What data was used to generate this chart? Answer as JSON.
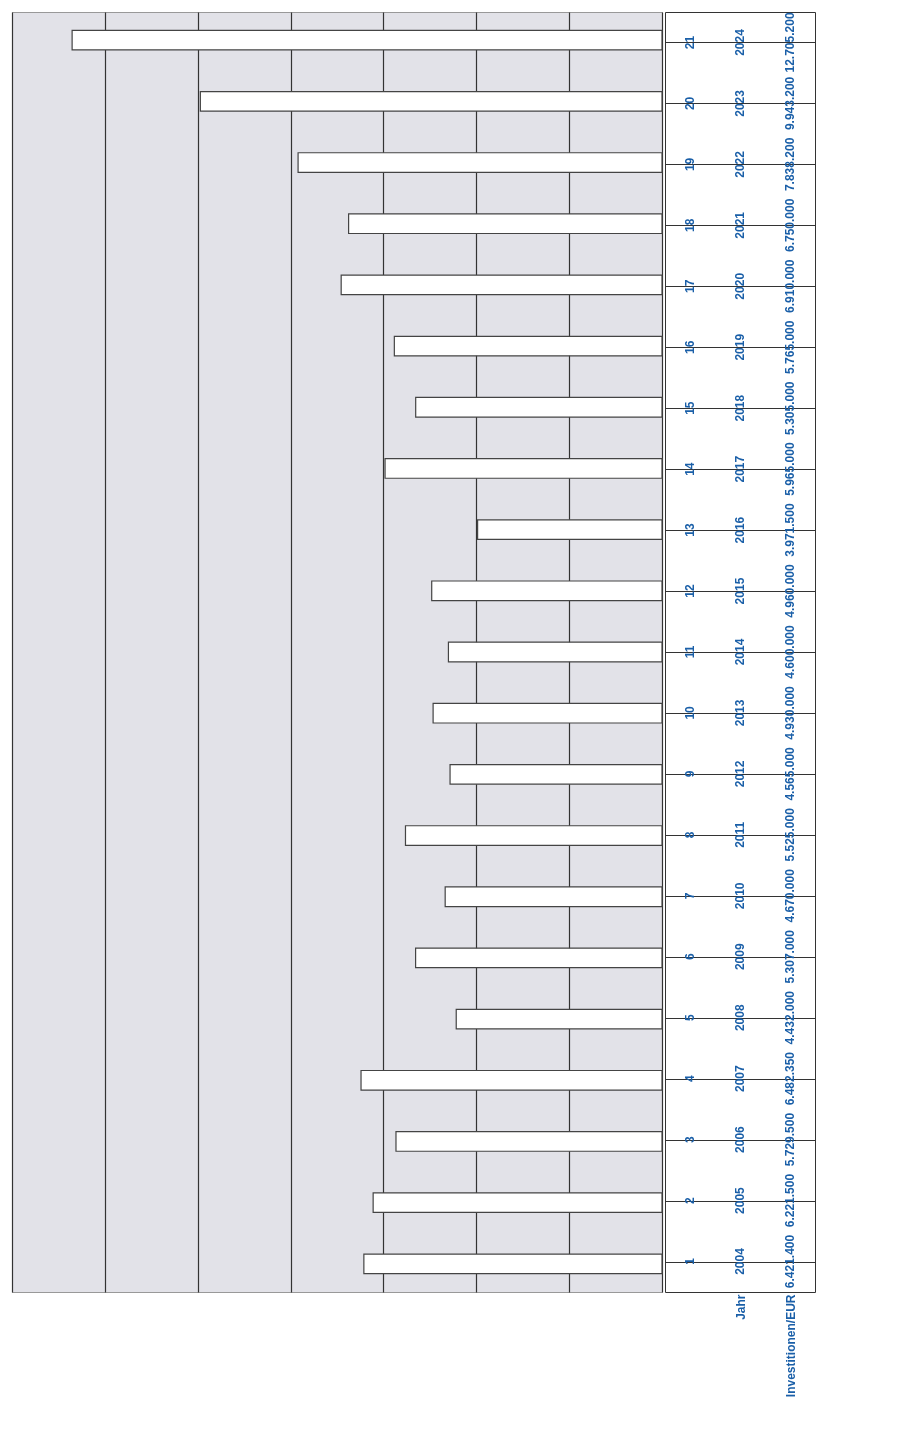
{
  "chart_data": {
    "type": "bar",
    "orientation": "horizontal",
    "ylabel": "Jahr",
    "categories": [
      "2024",
      "2023",
      "2022",
      "2021",
      "2020",
      "2019",
      "2018",
      "2017",
      "2016",
      "2015",
      "2014",
      "2013",
      "2012",
      "2011",
      "2010",
      "2009",
      "2008",
      "2007",
      "2006",
      "2005",
      "2004"
    ],
    "values": [
      12705200,
      9943200,
      7838200,
      6750000,
      6910000,
      5765000,
      5305000,
      5965000,
      3971500,
      4960000,
      4600000,
      4930000,
      4565000,
      5525000,
      4670000,
      5307000,
      4432000,
      6482350,
      5729500,
      6221500,
      6421400
    ],
    "value_labels": [
      "12.705.200",
      "9.943.200",
      "7.838.200",
      "6.750.000",
      "6.910.000",
      "5.765.000",
      "5.305.000",
      "5.965.000",
      "3.971.500",
      "4.960.000",
      "4.600.000",
      "4.930.000",
      "4.565.000",
      "5.525.000",
      "4.670.000",
      "5.307.000",
      "4.432.000",
      "6.482.350",
      "5.729.500",
      "6.221.500",
      "6.421.400"
    ],
    "color": "#ffffff",
    "xlim": [
      14000000,
      0
    ],
    "xticks": [
      {
        "value": 0,
        "label": null
      },
      {
        "value": 2000000,
        "label": null
      },
      {
        "value": 4000000,
        "label": null
      },
      {
        "value": 6000000,
        "label": null
      },
      {
        "value": 8000000,
        "label": null
      },
      {
        "value": 10000000,
        "label": null
      },
      {
        "value": 12000000,
        "label": null
      },
      {
        "value": 14000000,
        "label": null
      }
    ],
    "grid": "x",
    "annotations": [
      "Investitionen/EUR",
      "21",
      "20",
      "19",
      "18",
      "17",
      "16",
      "15",
      "14",
      "13",
      "12",
      "11",
      "10",
      "9",
      "8",
      "7",
      "6",
      "5",
      "4",
      "3",
      "2",
      "1"
    ]
  }
}
